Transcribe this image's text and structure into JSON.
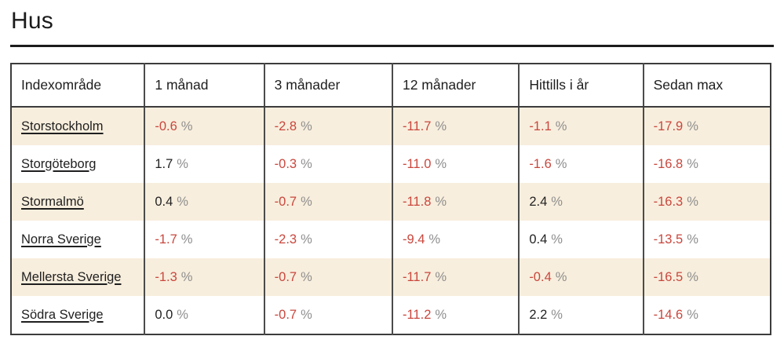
{
  "page": {
    "title": "Hus"
  },
  "table": {
    "columns": [
      "Indexområde",
      "1 månad",
      "3 månader",
      "12 månader",
      "Hittills i år",
      "Sedan max"
    ],
    "percent_sign": "%",
    "rows": [
      {
        "area": "Storstockholm",
        "values": [
          "-0.6",
          "-2.8",
          "-11.7",
          "-1.1",
          "-17.9"
        ]
      },
      {
        "area": "Storgöteborg",
        "values": [
          "1.7",
          "-0.3",
          "-11.0",
          "-1.6",
          "-16.8"
        ]
      },
      {
        "area": "Stormalmö",
        "values": [
          "0.4",
          "-0.7",
          "-11.8",
          "2.4",
          "-16.3"
        ]
      },
      {
        "area": "Norra Sverige",
        "values": [
          "-1.7",
          "-2.3",
          "-9.4",
          "0.4",
          "-13.5"
        ]
      },
      {
        "area": "Mellersta Sverige",
        "values": [
          "-1.3",
          "-0.7",
          "-11.7",
          "-0.4",
          "-16.5"
        ]
      },
      {
        "area": "Södra Sverige",
        "values": [
          "0.0",
          "-0.7",
          "-11.2",
          "2.2",
          "-14.6"
        ]
      }
    ]
  },
  "colors": {
    "negative_value": "#c9473d",
    "positive_value": "#222222",
    "percent_sign": "#8e8e8e",
    "row_stripe": "#f8eedd",
    "border": "#3c3c3c"
  }
}
